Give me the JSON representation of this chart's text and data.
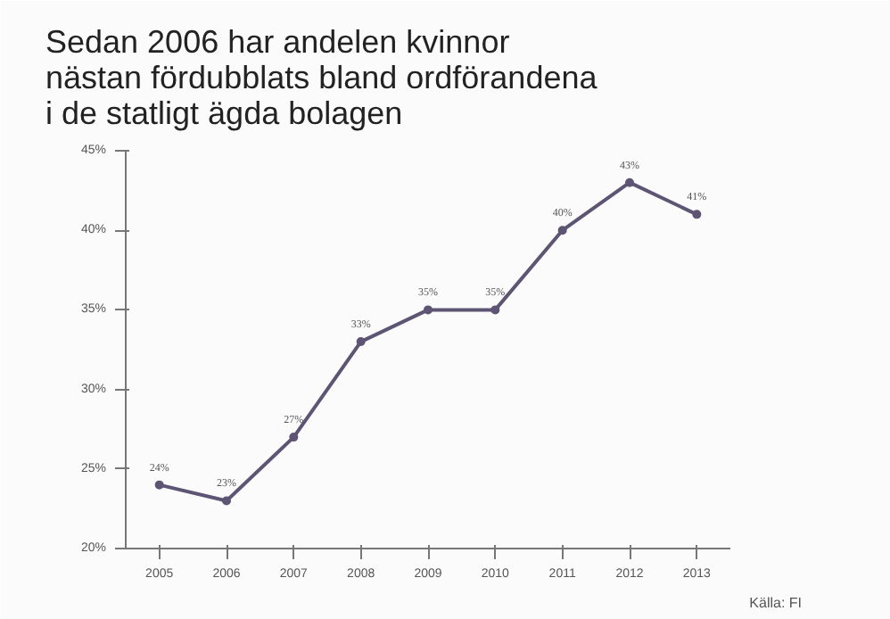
{
  "chart_data": {
    "type": "line",
    "title": "Sedan 2006 har andelen kvinnor\nnästan fördubblats bland ordförandena\ni de statligt ägda bolagen",
    "categories": [
      "2005",
      "2006",
      "2007",
      "2008",
      "2009",
      "2010",
      "2011",
      "2012",
      "2013"
    ],
    "series": [
      {
        "color": "#5e5473",
        "values": [
          24,
          23,
          27,
          33,
          35,
          35,
          40,
          43,
          41
        ]
      }
    ],
    "value_labels": [
      "24%",
      "23%",
      "27%",
      "33%",
      "35%",
      "35%",
      "40%",
      "43%",
      "41%"
    ],
    "ylim": [
      20,
      45
    ],
    "yticks": [
      {
        "value": 20,
        "label": "20%"
      },
      {
        "value": 25,
        "label": "25%"
      },
      {
        "value": 30,
        "label": "30%"
      },
      {
        "value": 35,
        "label": "35%"
      },
      {
        "value": 40,
        "label": "40%"
      },
      {
        "value": 45,
        "label": "45%"
      }
    ],
    "grid": false,
    "marker": "circle",
    "line_style": "solid",
    "annotations": [
      "Källa: FI"
    ]
  }
}
